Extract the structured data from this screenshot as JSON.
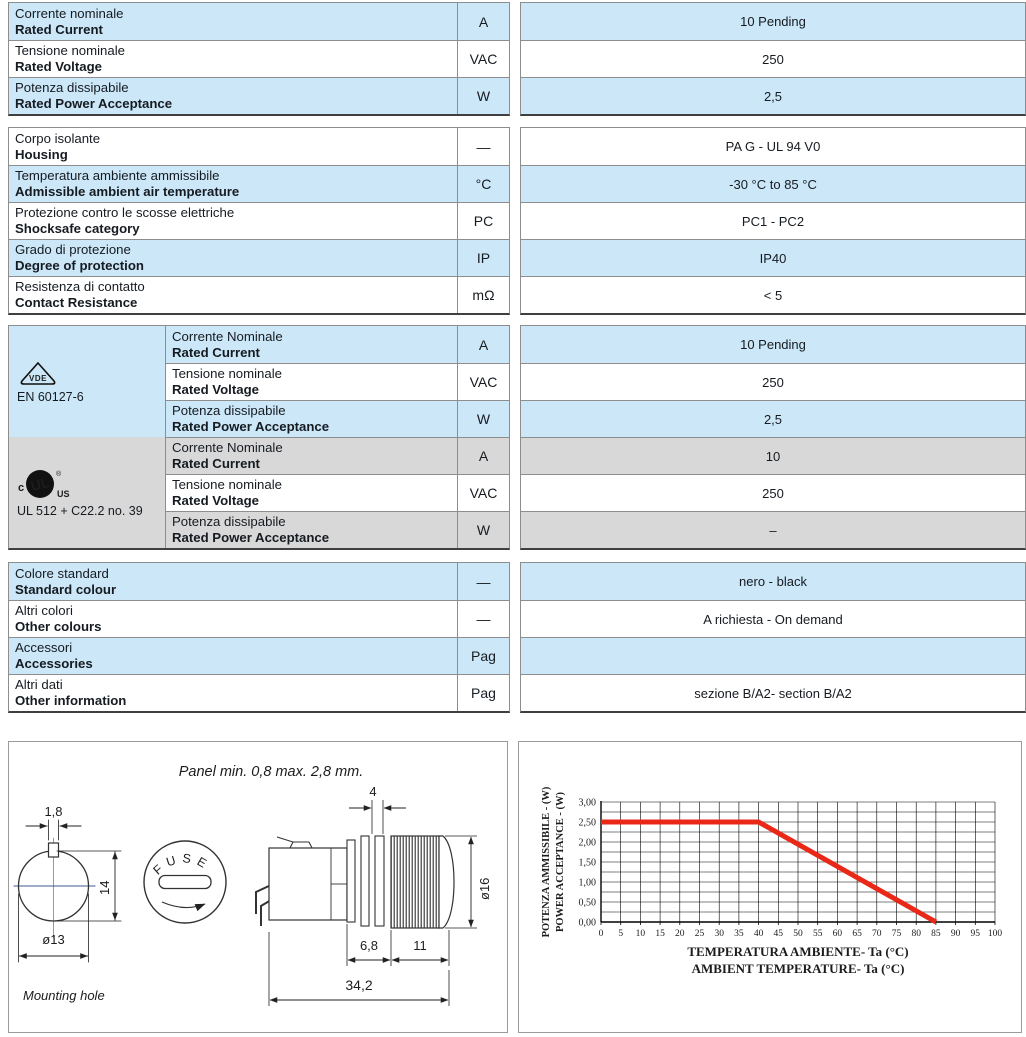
{
  "colors": {
    "row_blue": "#cbe7f8",
    "row_gray": "#d8d8d8",
    "border": "#8d8d8d",
    "text": "#161b21",
    "chart_line_red": "#ea2817",
    "centerline_blue": "#3c5a96"
  },
  "table1": {
    "rows": [
      {
        "it": "Corrente nominale",
        "en": "Rated Current",
        "unit": "A",
        "value": "10 Pending"
      },
      {
        "it": "Tensione nominale",
        "en": "Rated Voltage",
        "unit": "VAC",
        "value": "250"
      },
      {
        "it": "Potenza dissipabile",
        "en": "Rated Power Acceptance",
        "unit": "W",
        "value": "2,5"
      }
    ]
  },
  "table2": {
    "rows": [
      {
        "it": "Corpo isolante",
        "en": "Housing",
        "unit": "—",
        "value": "PA G - UL 94 V0"
      },
      {
        "it": "Temperatura ambiente ammissibile",
        "en": "Admissible ambient air temperature",
        "unit": "°C",
        "value": "-30 °C to 85 °C"
      },
      {
        "it": "Protezione contro le scosse elettriche",
        "en": "Shocksafe category",
        "unit": "PC",
        "value": "PC1 - PC2"
      },
      {
        "it": "Grado di protezione",
        "en": "Degree of protection",
        "unit": "IP",
        "value": "IP40"
      },
      {
        "it": "Resistenza di contatto",
        "en": "Contact Resistance",
        "unit": "mΩ",
        "value": "< 5"
      }
    ]
  },
  "cert": {
    "vde": {
      "logo": "vde-triangle",
      "standard": "EN 60127-6",
      "rows": [
        {
          "it": "Corrente Nominale",
          "en": "Rated Current",
          "unit": "A",
          "value": "10 Pending"
        },
        {
          "it": "Tensione nominale",
          "en": "Rated Voltage",
          "unit": "VAC",
          "value": "250"
        },
        {
          "it": "Potenza dissipabile",
          "en": "Rated Power Acceptance",
          "unit": "W",
          "value": "2,5"
        }
      ]
    },
    "ul": {
      "logo": "cULus",
      "logo_prefix": "c",
      "logo_main": "UL",
      "logo_suffix": "US",
      "logo_reg": "®",
      "standard": "UL 512 + C22.2 no. 39",
      "rows": [
        {
          "it": "Corrente Nominale",
          "en": "Rated Current",
          "unit": "A",
          "value": "10"
        },
        {
          "it": "Tensione nominale",
          "en": "Rated Voltage",
          "unit": "VAC",
          "value": "250"
        },
        {
          "it": "Potenza dissipabile",
          "en": "Rated Power Acceptance",
          "unit": "W",
          "value": "–"
        }
      ]
    }
  },
  "table4": {
    "rows": [
      {
        "it": "Colore standard",
        "en": "Standard colour",
        "unit": "—",
        "value": "nero - black"
      },
      {
        "it": "Altri colori",
        "en": "Other colours",
        "unit": "—",
        "value": "A richiesta - On demand"
      },
      {
        "it": "Accessori",
        "en": "Accessories",
        "unit": "Pag",
        "value": ""
      },
      {
        "it": "Altri dati",
        "en": "Other information",
        "unit": "Pag",
        "value": "sezione B/A2- section B/A2"
      }
    ]
  },
  "drawings": {
    "panel_note": "Panel min. 0,8  max. 2,8 mm.",
    "mounting_hole": {
      "caption": "Mounting hole",
      "dim_key_width": "1,8",
      "dim_height": "14",
      "dim_diameter": "ø13"
    },
    "cap": {
      "fuse_label": "FUSE"
    },
    "side_view": {
      "dim_panel_slot": "4",
      "dim_cap_diameter": "ø16",
      "dim_neck": "6,8",
      "dim_knob": "11",
      "dim_total_length": "34,2"
    }
  },
  "chart_data": {
    "type": "line",
    "xlabel_lines": [
      "TEMPERATURA AMBIENTE- Ta (°C)",
      "AMBIENT TEMPERATURE- Ta (°C)"
    ],
    "ylabel_lines": [
      "POTENZA AMMISSIBILE - (W)",
      "POWER ACCEPTANCE - (W)"
    ],
    "xlim": [
      0,
      100
    ],
    "ylim": [
      0,
      3
    ],
    "x_ticks": [
      0,
      5,
      10,
      15,
      20,
      25,
      30,
      35,
      40,
      45,
      50,
      55,
      60,
      65,
      70,
      75,
      80,
      85,
      90,
      95,
      100
    ],
    "y_ticks": [
      {
        "label": "0,00",
        "v": 0
      },
      {
        "label": "0,50",
        "v": 0.5
      },
      {
        "label": "1,00",
        "v": 1
      },
      {
        "label": "1,50",
        "v": 1.5
      },
      {
        "label": "2,00",
        "v": 2
      },
      {
        "label": "2,50",
        "v": 2.5
      },
      {
        "label": "3,00",
        "v": 3
      }
    ],
    "y_minor_step": 0.25,
    "grid": true,
    "legend": "none",
    "series": [
      {
        "name": "Potenza ammissibile / Power acceptance",
        "color": "#ea2817",
        "points": [
          [
            0,
            2.5
          ],
          [
            40,
            2.5
          ],
          [
            85,
            0
          ]
        ]
      }
    ]
  }
}
